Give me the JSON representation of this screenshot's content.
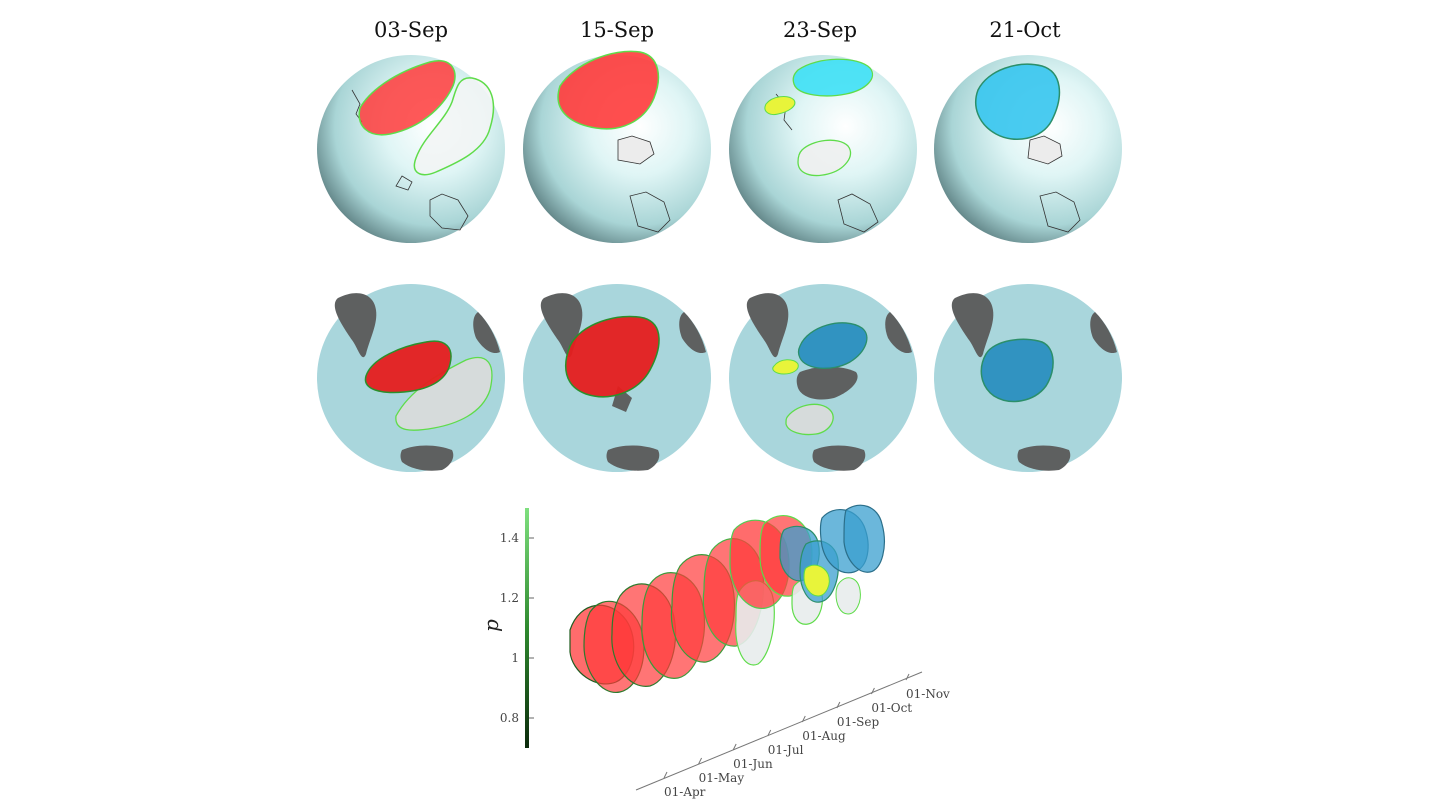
{
  "panels": [
    {
      "date": "03-Sep"
    },
    {
      "date": "15-Sep"
    },
    {
      "date": "23-Sep"
    },
    {
      "date": "21-Oct"
    }
  ],
  "colors": {
    "warm_anomaly": "#ff3b3b",
    "cold_anomaly": "#3ec8ef",
    "cold_anomaly_flat": "#2a8fbf",
    "neutral": "#e8ecec",
    "yellow": "#e8f43a",
    "contour": "#5fdc4a",
    "ocean_flat": "#a9d6dc",
    "land_flat": "#5e6060"
  },
  "chart_data": {
    "type": "scatter",
    "y_label": "p",
    "y_ticks": [
      "0.8",
      "1",
      "1.2",
      "1.4"
    ],
    "y_range": [
      0.7,
      1.5
    ],
    "time_ticks": [
      "01-Apr",
      "01-May",
      "01-Jun",
      "01-Jul",
      "01-Aug",
      "01-Sep",
      "01-Oct",
      "01-Nov"
    ],
    "colorbar": {
      "cmap": "green",
      "range": [
        0.7,
        1.5
      ]
    }
  }
}
